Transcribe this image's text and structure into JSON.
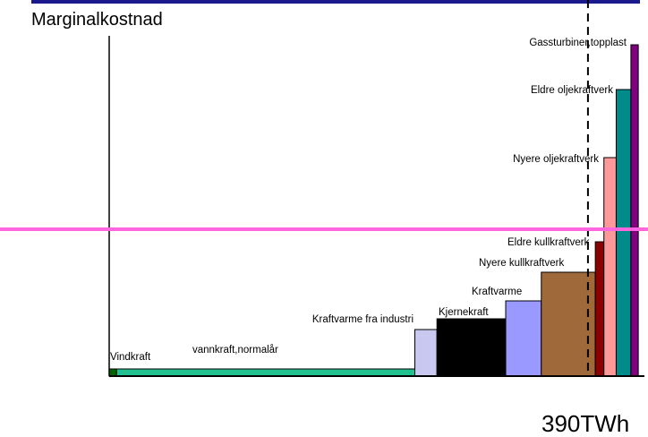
{
  "chart_data": {
    "type": "merit_order",
    "y_label": "Marginalkostnad",
    "categories": [
      "Vindkraft",
      "vannkraft,normalår",
      "Kraftvarme fra industri",
      "Kjernekraft",
      "Kraftvarme",
      "Nyere kullkraftverk",
      "Eldre kullkraftverk",
      "Nyere oljekraftverk",
      "Eldre oljekraftverk",
      "Gassturbiner,topplast"
    ],
    "widths": [
      6,
      243,
      18,
      56,
      29,
      44,
      7,
      10,
      12,
      6
    ],
    "values": [
      2,
      2,
      13,
      16,
      21,
      29,
      37.5,
      61,
      80,
      92.5
    ],
    "colors": [
      "#006400",
      "#20c090",
      "#c8c8f0",
      "#000000",
      "#9999ff",
      "#a0693a",
      "#8b0000",
      "#ff9999",
      "#008b8b",
      "#800080"
    ],
    "xlim": [
      0,
      436
    ],
    "ylim": [
      0,
      100
    ],
    "price_line": 41,
    "price_color": "#ff66dd",
    "demand_line": {
      "value": 390,
      "label": "390TWh"
    }
  }
}
